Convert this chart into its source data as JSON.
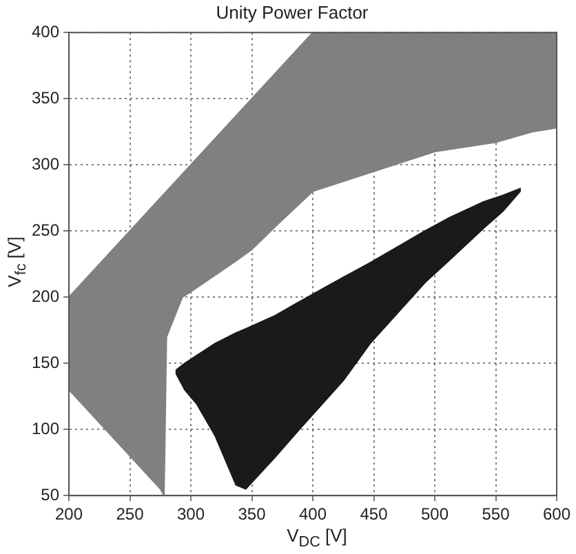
{
  "chart_data": {
    "type": "area",
    "title": "Unity Power Factor",
    "xlabel": "V$_{DC}$ [V]",
    "ylabel": "V$_{fc}$ [V]",
    "xlim": [
      200,
      600
    ],
    "xticks": [
      200,
      250,
      300,
      350,
      400,
      450,
      500,
      550,
      600
    ],
    "ylim": [
      50,
      400
    ],
    "yticks": [
      50,
      100,
      150,
      200,
      250,
      300,
      350,
      400
    ],
    "grid": true,
    "legend": false,
    "series": [
      {
        "color": "#808080",
        "x": [
          200,
          250,
          300,
          350,
          400,
          600,
          600,
          580,
          550,
          500,
          450,
          400,
          370,
          350,
          338,
          300,
          293,
          280,
          278,
          275,
          250,
          200,
          200
        ],
        "values": [
          200,
          250,
          300,
          350,
          400,
          400,
          328,
          325,
          317,
          310,
          295,
          280,
          254,
          236,
          228,
          204,
          200,
          170,
          50,
          55,
          80,
          130,
          200
        ]
      },
      {
        "color": "#1a1a1a",
        "x": [
          288,
          295,
          305,
          320,
          337,
          345,
          369,
          388,
          425,
          447,
          492,
          512,
          540,
          556,
          570,
          570,
          556,
          540,
          512,
          492,
          447,
          425,
          388,
          369,
          345,
          337,
          320,
          305,
          295,
          288,
          288
        ],
        "values": [
          145,
          150,
          156,
          165,
          173,
          176,
          186,
          196,
          215,
          226,
          250,
          260,
          272,
          277,
          282,
          280,
          265,
          252,
          228,
          211,
          165,
          137,
          99,
          79,
          55,
          58,
          95,
          119,
          130,
          142,
          145
        ]
      }
    ]
  }
}
